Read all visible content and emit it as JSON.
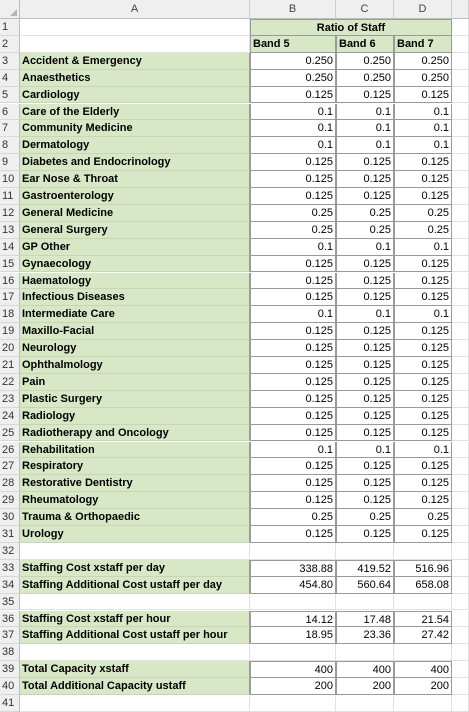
{
  "columns": [
    "A",
    "B",
    "C",
    "D"
  ],
  "header": {
    "ratio_title": "Ratio of Staff",
    "bands": [
      "Band 5",
      "Band 6",
      "Band 7"
    ]
  },
  "specialties": [
    {
      "row": "3",
      "name": "Accident & Emergency",
      "values": [
        "0.250",
        "0.250",
        "0.250"
      ]
    },
    {
      "row": "4",
      "name": "Anaesthetics",
      "values": [
        "0.250",
        "0.250",
        "0.250"
      ]
    },
    {
      "row": "5",
      "name": "Cardiology",
      "values": [
        "0.125",
        "0.125",
        "0.125"
      ]
    },
    {
      "row": "6",
      "name": "Care of the Elderly",
      "values": [
        "0.1",
        "0.1",
        "0.1"
      ]
    },
    {
      "row": "7",
      "name": "Community Medicine",
      "values": [
        "0.1",
        "0.1",
        "0.1"
      ]
    },
    {
      "row": "8",
      "name": "Dermatology",
      "values": [
        "0.1",
        "0.1",
        "0.1"
      ]
    },
    {
      "row": "9",
      "name": "Diabetes and Endocrinology",
      "values": [
        "0.125",
        "0.125",
        "0.125"
      ]
    },
    {
      "row": "10",
      "name": "Ear Nose & Throat",
      "values": [
        "0.125",
        "0.125",
        "0.125"
      ]
    },
    {
      "row": "11",
      "name": "Gastroenterology",
      "values": [
        "0.125",
        "0.125",
        "0.125"
      ]
    },
    {
      "row": "12",
      "name": "General Medicine",
      "values": [
        "0.25",
        "0.25",
        "0.25"
      ]
    },
    {
      "row": "13",
      "name": "General Surgery",
      "values": [
        "0.25",
        "0.25",
        "0.25"
      ]
    },
    {
      "row": "14",
      "name": "GP Other",
      "values": [
        "0.1",
        "0.1",
        "0.1"
      ]
    },
    {
      "row": "15",
      "name": "Gynaecology",
      "values": [
        "0.125",
        "0.125",
        "0.125"
      ]
    },
    {
      "row": "16",
      "name": "Haematology",
      "values": [
        "0.125",
        "0.125",
        "0.125"
      ]
    },
    {
      "row": "17",
      "name": "Infectious Diseases",
      "values": [
        "0.125",
        "0.125",
        "0.125"
      ]
    },
    {
      "row": "18",
      "name": "Intermediate Care",
      "values": [
        "0.1",
        "0.1",
        "0.1"
      ]
    },
    {
      "row": "19",
      "name": "Maxillo-Facial",
      "values": [
        "0.125",
        "0.125",
        "0.125"
      ]
    },
    {
      "row": "20",
      "name": "Neurology",
      "values": [
        "0.125",
        "0.125",
        "0.125"
      ]
    },
    {
      "row": "21",
      "name": "Ophthalmology",
      "values": [
        "0.125",
        "0.125",
        "0.125"
      ]
    },
    {
      "row": "22",
      "name": "Pain",
      "values": [
        "0.125",
        "0.125",
        "0.125"
      ]
    },
    {
      "row": "23",
      "name": "Plastic Surgery",
      "values": [
        "0.125",
        "0.125",
        "0.125"
      ]
    },
    {
      "row": "24",
      "name": "Radiology",
      "values": [
        "0.125",
        "0.125",
        "0.125"
      ]
    },
    {
      "row": "25",
      "name": "Radiotherapy and Oncology",
      "values": [
        "0.125",
        "0.125",
        "0.125"
      ]
    },
    {
      "row": "26",
      "name": "Rehabilitation",
      "values": [
        "0.1",
        "0.1",
        "0.1"
      ]
    },
    {
      "row": "27",
      "name": "Respiratory",
      "values": [
        "0.125",
        "0.125",
        "0.125"
      ]
    },
    {
      "row": "28",
      "name": "Restorative Dentistry",
      "values": [
        "0.125",
        "0.125",
        "0.125"
      ]
    },
    {
      "row": "29",
      "name": "Rheumatology",
      "values": [
        "0.125",
        "0.125",
        "0.125"
      ]
    },
    {
      "row": "30",
      "name": "Trauma & Orthopaedic",
      "values": [
        "0.25",
        "0.25",
        "0.25"
      ]
    },
    {
      "row": "31",
      "name": "Urology",
      "values": [
        "0.125",
        "0.125",
        "0.125"
      ]
    }
  ],
  "summary_groups": [
    [
      {
        "row": "33",
        "name": "Staffing Cost xstaff per day",
        "values": [
          "338.88",
          "419.52",
          "516.96"
        ]
      },
      {
        "row": "34",
        "name": "Staffing Additional Cost ustaff per day",
        "values": [
          "454.80",
          "560.64",
          "658.08"
        ]
      }
    ],
    [
      {
        "row": "36",
        "name": "Staffing Cost xstaff per hour",
        "values": [
          "14.12",
          "17.48",
          "21.54"
        ]
      },
      {
        "row": "37",
        "name": "Staffing Additional Cost ustaff per hour",
        "values": [
          "18.95",
          "23.36",
          "27.42"
        ]
      }
    ],
    [
      {
        "row": "39",
        "name": "Total Capacity xstaff",
        "values": [
          "400",
          "400",
          "400"
        ]
      },
      {
        "row": "40",
        "name": "Total Additional Capacity ustaff",
        "values": [
          "200",
          "200",
          "200"
        ]
      }
    ]
  ],
  "row_numbers": [
    "1",
    "2",
    "3",
    "4",
    "5",
    "6",
    "7",
    "8",
    "9",
    "10",
    "11",
    "12",
    "13",
    "14",
    "15",
    "16",
    "17",
    "18",
    "19",
    "20",
    "21",
    "22",
    "23",
    "24",
    "25",
    "26",
    "27",
    "28",
    "29",
    "30",
    "31",
    "32",
    "33",
    "34",
    "35",
    "36",
    "37",
    "38",
    "39",
    "40",
    "41"
  ],
  "colors": {
    "green_fill": "#d8e8c6",
    "header_fill": "#efefef",
    "gridline": "#e1e1e1"
  }
}
